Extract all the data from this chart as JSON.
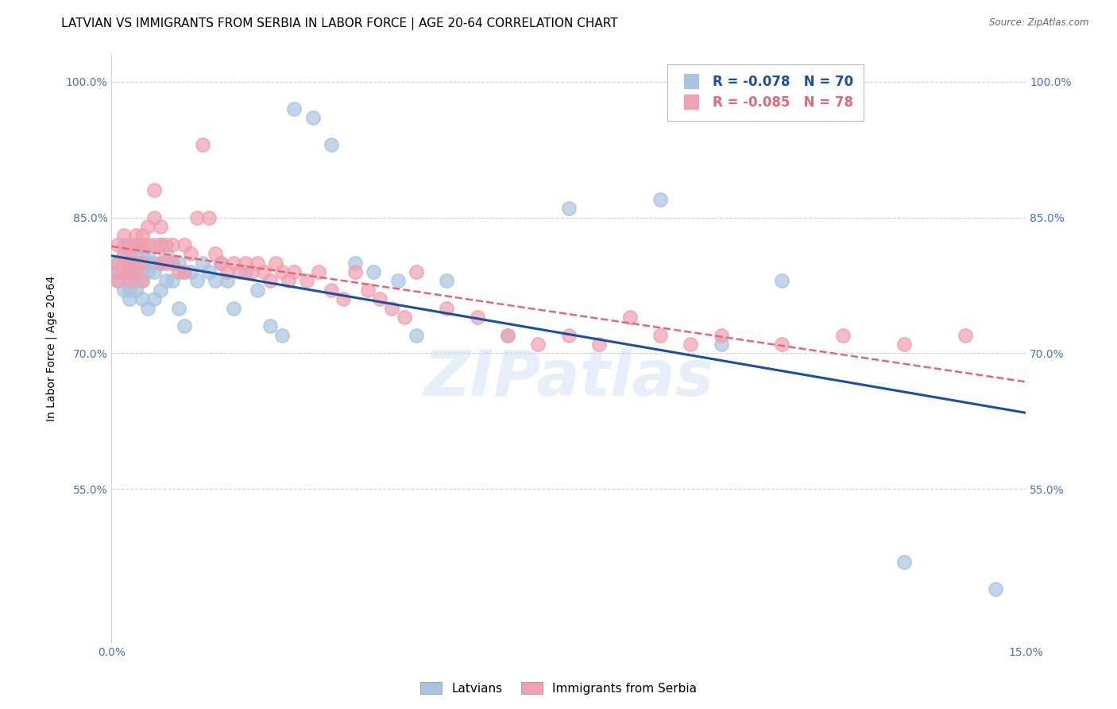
{
  "title": "LATVIAN VS IMMIGRANTS FROM SERBIA IN LABOR FORCE | AGE 20-64 CORRELATION CHART",
  "source": "Source: ZipAtlas.com",
  "ylabel": "In Labor Force | Age 20-64",
  "xlim": [
    0.0,
    0.15
  ],
  "ylim": [
    0.38,
    1.03
  ],
  "xticks": [
    0.0,
    0.15
  ],
  "xticklabels": [
    "0.0%",
    "15.0%"
  ],
  "yticks": [
    0.55,
    0.7,
    0.85,
    1.0
  ],
  "yticklabels": [
    "55.0%",
    "70.0%",
    "85.0%",
    "100.0%"
  ],
  "latvians_x": [
    0.001,
    0.001,
    0.001,
    0.002,
    0.002,
    0.002,
    0.002,
    0.003,
    0.003,
    0.003,
    0.003,
    0.003,
    0.003,
    0.004,
    0.004,
    0.004,
    0.004,
    0.004,
    0.004,
    0.005,
    0.005,
    0.005,
    0.005,
    0.005,
    0.005,
    0.006,
    0.006,
    0.006,
    0.006,
    0.007,
    0.007,
    0.007,
    0.008,
    0.008,
    0.008,
    0.009,
    0.009,
    0.01,
    0.01,
    0.011,
    0.011,
    0.012,
    0.012,
    0.013,
    0.014,
    0.015,
    0.016,
    0.017,
    0.018,
    0.019,
    0.02,
    0.022,
    0.024,
    0.026,
    0.028,
    0.03,
    0.033,
    0.036,
    0.04,
    0.043,
    0.047,
    0.05,
    0.055,
    0.065,
    0.075,
    0.09,
    0.1,
    0.11,
    0.13,
    0.145
  ],
  "latvians_y": [
    0.8,
    0.79,
    0.78,
    0.82,
    0.81,
    0.79,
    0.77,
    0.81,
    0.8,
    0.79,
    0.78,
    0.77,
    0.76,
    0.82,
    0.81,
    0.8,
    0.79,
    0.78,
    0.77,
    0.82,
    0.81,
    0.8,
    0.79,
    0.78,
    0.76,
    0.81,
    0.8,
    0.79,
    0.75,
    0.8,
    0.79,
    0.76,
    0.82,
    0.8,
    0.77,
    0.81,
    0.78,
    0.8,
    0.78,
    0.8,
    0.75,
    0.79,
    0.73,
    0.79,
    0.78,
    0.8,
    0.79,
    0.78,
    0.8,
    0.78,
    0.75,
    0.79,
    0.77,
    0.73,
    0.72,
    0.97,
    0.96,
    0.93,
    0.8,
    0.79,
    0.78,
    0.72,
    0.78,
    0.72,
    0.86,
    0.87,
    0.71,
    0.78,
    0.47,
    0.44
  ],
  "serbia_x": [
    0.001,
    0.001,
    0.001,
    0.001,
    0.002,
    0.002,
    0.002,
    0.002,
    0.003,
    0.003,
    0.003,
    0.003,
    0.003,
    0.004,
    0.004,
    0.004,
    0.004,
    0.005,
    0.005,
    0.005,
    0.005,
    0.006,
    0.006,
    0.007,
    0.007,
    0.007,
    0.008,
    0.008,
    0.008,
    0.009,
    0.009,
    0.01,
    0.01,
    0.011,
    0.012,
    0.012,
    0.013,
    0.014,
    0.015,
    0.016,
    0.017,
    0.018,
    0.019,
    0.02,
    0.021,
    0.022,
    0.023,
    0.024,
    0.025,
    0.026,
    0.027,
    0.028,
    0.029,
    0.03,
    0.032,
    0.034,
    0.036,
    0.038,
    0.04,
    0.042,
    0.044,
    0.046,
    0.048,
    0.05,
    0.055,
    0.06,
    0.065,
    0.07,
    0.075,
    0.08,
    0.085,
    0.09,
    0.095,
    0.1,
    0.11,
    0.12,
    0.13,
    0.14
  ],
  "serbia_y": [
    0.82,
    0.8,
    0.79,
    0.78,
    0.83,
    0.81,
    0.8,
    0.79,
    0.82,
    0.81,
    0.8,
    0.79,
    0.78,
    0.83,
    0.82,
    0.8,
    0.79,
    0.83,
    0.82,
    0.8,
    0.78,
    0.84,
    0.82,
    0.88,
    0.85,
    0.82,
    0.84,
    0.82,
    0.8,
    0.82,
    0.8,
    0.82,
    0.8,
    0.79,
    0.82,
    0.79,
    0.81,
    0.85,
    0.93,
    0.85,
    0.81,
    0.8,
    0.79,
    0.8,
    0.79,
    0.8,
    0.79,
    0.8,
    0.79,
    0.78,
    0.8,
    0.79,
    0.78,
    0.79,
    0.78,
    0.79,
    0.77,
    0.76,
    0.79,
    0.77,
    0.76,
    0.75,
    0.74,
    0.79,
    0.75,
    0.74,
    0.72,
    0.71,
    0.72,
    0.71,
    0.74,
    0.72,
    0.71,
    0.72,
    0.71,
    0.72,
    0.71,
    0.72
  ],
  "latvian_color": "#a8c4e0",
  "serbia_color": "#f0a0b0",
  "latvian_line_color": "#1a50a0",
  "serbia_line_color": "#e06878",
  "legend_R_latvian": "R = -0.078",
  "legend_N_latvian": "N = 70",
  "legend_R_serbia": "R = -0.085",
  "legend_N_serbia": "N = 78",
  "watermark": "ZIPatlas",
  "background_color": "#ffffff",
  "grid_color": "#d0d0d0",
  "tick_color": "#4472c4",
  "title_fontsize": 11,
  "label_fontsize": 10,
  "tick_fontsize": 10
}
